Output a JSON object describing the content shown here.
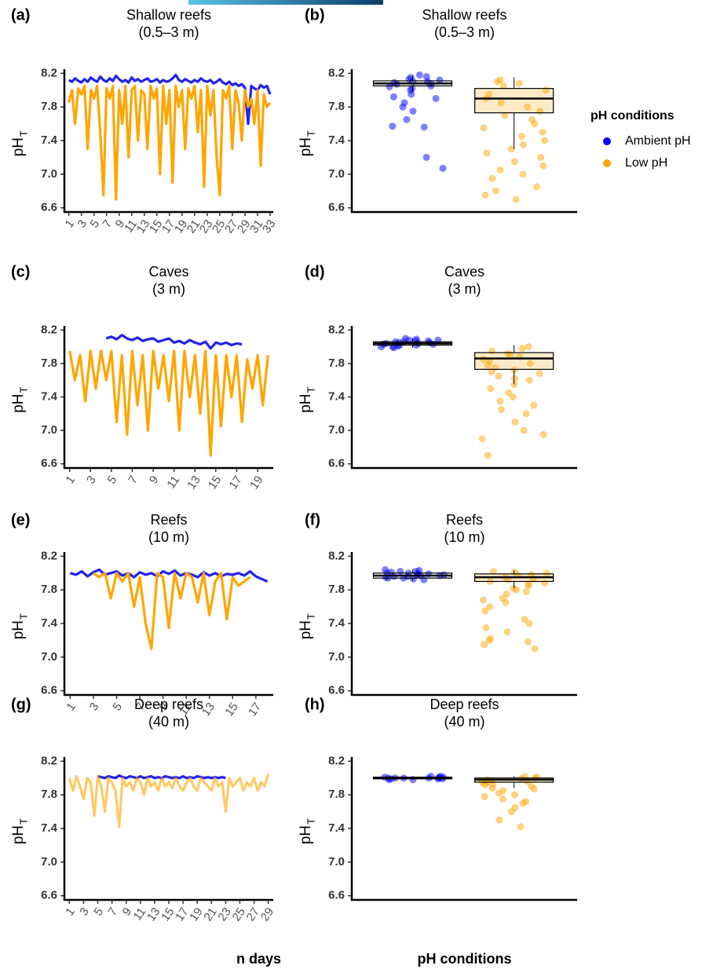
{
  "chart_data": [
    {
      "type": "line",
      "panel": "(a)",
      "title": "Shallow reefs",
      "subtitle": "(0.5–3 m)",
      "y_label": "pH",
      "y_label_sub": "T",
      "ylim": [
        6.55,
        8.25
      ],
      "yticks": [
        6.6,
        {
          "value": 7,
          "label": "7.0"
        },
        7.4,
        7.8,
        8.2
      ],
      "xlim": [
        0.3,
        33.5
      ],
      "xticks": [
        1,
        3,
        5,
        7,
        9,
        11,
        13,
        15,
        17,
        19,
        21,
        23,
        25,
        27,
        29,
        31,
        33
      ],
      "x": [
        1,
        1.5,
        2,
        2.5,
        3,
        3.5,
        4,
        4.5,
        5,
        5.5,
        6,
        6.5,
        7,
        7.5,
        8,
        8.5,
        9,
        9.5,
        10,
        10.5,
        11,
        11.5,
        12,
        12.5,
        13,
        13.5,
        14,
        14.5,
        15,
        15.5,
        16,
        16.5,
        17,
        17.5,
        18,
        18.5,
        19,
        19.5,
        20,
        20.5,
        21,
        21.5,
        22,
        22.5,
        23,
        23.5,
        24,
        24.5,
        25,
        25.5,
        26,
        26.5,
        27,
        27.5,
        28,
        28.5,
        29,
        29.5,
        30,
        30.5,
        31,
        31.5,
        32,
        32.5,
        33
      ],
      "series": [
        {
          "color": "#2222ee",
          "values": [
            8.12,
            8.1,
            8.14,
            8.11,
            8.09,
            8.13,
            8.1,
            8.15,
            8.12,
            8.1,
            8.16,
            8.12,
            8.1,
            8.14,
            8.11,
            8.17,
            8.13,
            8.1,
            8.12,
            8.09,
            8.15,
            8.11,
            8.13,
            8.1,
            8.12,
            8.14,
            8.1,
            8.11,
            8.13,
            8.09,
            8.12,
            8.1,
            8.11,
            8.14,
            8.18,
            8.12,
            8.1,
            8.13,
            8.11,
            8.09,
            8.12,
            8.1,
            8.14,
            8.11,
            8.1,
            8.12,
            8.08,
            8.1,
            8.13,
            8.09,
            8.07,
            8.1,
            8.06,
            8.08,
            8.05,
            8.07,
            8.03,
            7.6,
            8.05,
            8.02,
            8.0,
            8.06,
            8.03,
            8.05,
            7.95
          ]
        },
        {
          "color": "#ffa500",
          "values": [
            7.85,
            8.0,
            7.6,
            8.02,
            7.95,
            8.05,
            7.3,
            8.0,
            7.9,
            8.05,
            7.5,
            6.75,
            8.02,
            7.9,
            8.05,
            6.7,
            8.0,
            7.6,
            8.05,
            7.2,
            8.0,
            8.05,
            7.4,
            8.0,
            7.95,
            7.3,
            8.05,
            7.9,
            8.02,
            7.0,
            8.05,
            7.6,
            8.0,
            6.9,
            8.05,
            7.8,
            8.0,
            7.3,
            8.02,
            7.9,
            8.05,
            7.5,
            8.0,
            6.85,
            8.05,
            7.7,
            8.0,
            7.2,
            6.75,
            8.0,
            7.9,
            8.05,
            7.3,
            8.0,
            7.85,
            7.4,
            8.0,
            7.8,
            7.9,
            7.6,
            8.0,
            7.1,
            7.95,
            7.8,
            7.85
          ]
        }
      ]
    },
    {
      "type": "box",
      "panel": "(b)",
      "title": "Shallow reefs",
      "subtitle": "(0.5–3 m)",
      "y_label": "pH",
      "y_label_sub": "T",
      "ylim": [
        6.55,
        8.25
      ],
      "yticks": [
        6.6,
        {
          "value": 7,
          "label": "7.0"
        },
        7.4,
        7.8,
        8.2
      ],
      "series": [
        {
          "color": "#0000ff",
          "box_fill": "#ffffff",
          "whisker_low": 7.98,
          "q1": 8.05,
          "median": 8.08,
          "q3": 8.11,
          "whisker_high": 8.17,
          "values": [
            8.1,
            8.15,
            8.05,
            8.12,
            8.08,
            8.0,
            7.95,
            8.18,
            8.02,
            7.9,
            7.85,
            8.07,
            8.13,
            7.75,
            7.57,
            7.56,
            7.65,
            7.2,
            7.07,
            8.1,
            8.09,
            8.16,
            7.92,
            8.04,
            7.8
          ]
        },
        {
          "color": "#ffa500",
          "box_fill": "#fdebc8",
          "whisker_low": 7.3,
          "q1": 7.73,
          "median": 7.9,
          "q3": 8.02,
          "whisker_high": 8.15,
          "values": [
            8.1,
            8.05,
            7.95,
            7.8,
            7.9,
            8.12,
            7.7,
            7.6,
            7.5,
            7.45,
            7.4,
            7.3,
            7.2,
            7.1,
            7.05,
            7.0,
            6.95,
            6.85,
            6.8,
            6.75,
            6.7,
            7.25,
            7.55,
            7.65,
            7.35,
            7.15,
            8.0,
            7.85,
            7.75,
            8.08
          ]
        }
      ]
    },
    {
      "type": "line",
      "panel": "(c)",
      "title": "Caves",
      "subtitle": "(3 m)",
      "y_label": "pH",
      "y_label_sub": "T",
      "ylim": [
        6.55,
        8.25
      ],
      "yticks": [
        6.6,
        {
          "value": 7,
          "label": "7.0"
        },
        7.4,
        7.8,
        8.2
      ],
      "xlim": [
        0.5,
        20.5
      ],
      "xticks": [
        1,
        3,
        5,
        7,
        9,
        11,
        13,
        15,
        17,
        19
      ],
      "x": [
        1,
        1.5,
        2,
        2.5,
        3,
        3.5,
        4,
        4.5,
        5,
        5.5,
        6,
        6.5,
        7,
        7.5,
        8,
        8.5,
        9,
        9.5,
        10,
        10.5,
        11,
        11.5,
        12,
        12.5,
        13,
        13.5,
        14,
        14.5,
        15,
        15.5,
        16,
        16.5,
        17,
        17.5,
        18,
        18.5,
        19,
        19.5,
        20
      ],
      "series": [
        {
          "color": "#2222ee",
          "values": [
            null,
            null,
            null,
            null,
            null,
            null,
            null,
            8.1,
            8.12,
            8.09,
            8.14,
            8.1,
            8.08,
            8.11,
            8.07,
            8.09,
            8.1,
            8.06,
            8.08,
            8.1,
            8.05,
            8.07,
            8.04,
            8.08,
            8.05,
            8.03,
            8.06,
            7.98,
            8.05,
            8.03,
            8.05,
            8.02,
            8.04,
            8.03,
            null,
            null,
            null,
            null,
            null
          ]
        },
        {
          "color": "#ffa500",
          "values": [
            7.95,
            7.6,
            7.9,
            7.35,
            7.95,
            7.5,
            7.95,
            7.6,
            7.95,
            7.1,
            7.9,
            6.95,
            7.95,
            7.3,
            7.9,
            7.0,
            7.95,
            7.5,
            7.9,
            7.35,
            7.95,
            7.0,
            7.95,
            7.4,
            7.9,
            7.2,
            7.95,
            6.7,
            7.9,
            7.05,
            7.9,
            7.4,
            7.9,
            7.1,
            7.85,
            7.5,
            7.9,
            7.3,
            7.9
          ]
        }
      ]
    },
    {
      "type": "box",
      "panel": "(d)",
      "title": "Caves",
      "subtitle": "(3 m)",
      "y_label": "pH",
      "y_label_sub": "T",
      "ylim": [
        6.55,
        8.25
      ],
      "yticks": [
        6.6,
        {
          "value": 7,
          "label": "7.0"
        },
        7.4,
        7.8,
        8.2
      ],
      "series": [
        {
          "color": "#0000ff",
          "box_fill": "#ffffff",
          "whisker_low": 7.99,
          "q1": 8.02,
          "median": 8.04,
          "q3": 8.06,
          "whisker_high": 8.1,
          "values": [
            8.0,
            8.02,
            8.04,
            8.06,
            8.08,
            8.1,
            8.01,
            8.03,
            8.05,
            8.07,
            8.09,
            7.99,
            8.0,
            8.06,
            8.04,
            8.02,
            8.08,
            8.03,
            8.05,
            8.07
          ]
        },
        {
          "color": "#ffa500",
          "box_fill": "#fdebc8",
          "whisker_low": 7.55,
          "q1": 7.73,
          "median": 7.86,
          "q3": 7.93,
          "whisker_high": 8.02,
          "values": [
            8.0,
            7.95,
            7.9,
            7.85,
            7.8,
            7.75,
            7.7,
            7.65,
            7.6,
            7.55,
            7.5,
            7.45,
            7.4,
            7.3,
            7.2,
            7.1,
            7.0,
            6.95,
            6.9,
            6.7,
            7.98,
            7.92,
            7.88,
            7.82,
            7.78,
            7.72,
            7.68,
            7.62,
            7.35,
            7.25
          ]
        }
      ]
    },
    {
      "type": "line",
      "panel": "(e)",
      "title": "Reefs",
      "subtitle": "(10 m)",
      "y_label": "pH",
      "y_label_sub": "T",
      "ylim": [
        6.55,
        8.25
      ],
      "yticks": [
        6.6,
        {
          "value": 7,
          "label": "7.0"
        },
        7.4,
        7.8,
        8.2
      ],
      "xlim": [
        0.5,
        18.5
      ],
      "xticks": [
        1,
        3,
        5,
        7,
        9,
        11,
        13,
        15,
        17
      ],
      "x": [
        1,
        1.5,
        2,
        2.5,
        3,
        3.5,
        4,
        4.5,
        5,
        5.5,
        6,
        6.5,
        7,
        7.5,
        8,
        8.5,
        9,
        9.5,
        10,
        10.5,
        11,
        11.5,
        12,
        12.5,
        13,
        13.5,
        14,
        14.5,
        15,
        15.5,
        16,
        16.5,
        17,
        17.5,
        18
      ],
      "series": [
        {
          "color": "#2222ee",
          "values": [
            8.0,
            7.98,
            8.02,
            7.96,
            8.01,
            8.04,
            7.98,
            8.0,
            8.02,
            7.97,
            8.0,
            7.95,
            8.01,
            7.98,
            8.0,
            7.96,
            8.02,
            7.99,
            8.03,
            7.97,
            8.0,
            7.98,
            7.95,
            8.01,
            7.97,
            8.0,
            7.96,
            7.99,
            7.98,
            8.0,
            7.97,
            8.02,
            7.96,
            7.93,
            7.9
          ]
        },
        {
          "color": "#ffa500",
          "values": [
            null,
            null,
            null,
            null,
            8.0,
            7.95,
            8.0,
            7.7,
            8.0,
            7.9,
            8.0,
            7.6,
            7.95,
            7.4,
            7.1,
            8.0,
            7.95,
            7.35,
            8.0,
            7.7,
            8.0,
            7.95,
            7.65,
            8.0,
            7.5,
            7.9,
            8.0,
            7.45,
            7.95,
            7.85,
            7.9,
            7.95,
            null,
            null,
            null
          ]
        }
      ]
    },
    {
      "type": "box",
      "panel": "(f)",
      "title": "Reefs",
      "subtitle": "(10 m)",
      "y_label": "pH",
      "y_label_sub": "T",
      "ylim": [
        6.55,
        8.25
      ],
      "yticks": [
        6.6,
        {
          "value": 7,
          "label": "7.0"
        },
        7.4,
        7.8,
        8.2
      ],
      "series": [
        {
          "color": "#0000ff",
          "box_fill": "#ffffff",
          "whisker_low": 7.91,
          "q1": 7.94,
          "median": 7.97,
          "q3": 8.0,
          "whisker_high": 8.04,
          "values": [
            7.92,
            7.94,
            7.96,
            7.98,
            8.0,
            8.02,
            8.04,
            7.93,
            7.95,
            7.97,
            7.99,
            8.01,
            8.03,
            7.96,
            7.98,
            8.0,
            7.94,
            7.97,
            8.02,
            7.99
          ]
        },
        {
          "color": "#ffa500",
          "box_fill": "#fdebc8",
          "whisker_low": 7.82,
          "q1": 7.9,
          "median": 7.95,
          "q3": 7.99,
          "whisker_high": 8.03,
          "values": [
            8.02,
            8.0,
            7.98,
            7.95,
            7.92,
            7.9,
            7.88,
            7.85,
            7.8,
            7.75,
            7.7,
            7.65,
            7.55,
            7.45,
            7.35,
            7.3,
            7.2,
            7.15,
            7.1,
            7.22,
            7.18,
            7.4,
            7.6,
            7.82,
            7.97,
            8.01,
            7.93,
            7.87,
            7.78,
            7.68
          ]
        }
      ]
    },
    {
      "type": "line",
      "panel": "(g)",
      "title": "Deep reefs",
      "subtitle": "(40 m)",
      "y_label": "pH",
      "y_label_sub": "T",
      "x_label": "n days",
      "ylim": [
        6.55,
        8.25
      ],
      "yticks": [
        6.6,
        {
          "value": 7,
          "label": "7.0"
        },
        7.4,
        7.8,
        8.2
      ],
      "xlim": [
        0.3,
        29.7
      ],
      "xticks": [
        1,
        3,
        5,
        7,
        9,
        11,
        13,
        15,
        17,
        19,
        21,
        23,
        25,
        27,
        29
      ],
      "x": [
        1,
        1.5,
        2,
        2.5,
        3,
        3.5,
        4,
        4.5,
        5,
        5.5,
        6,
        6.5,
        7,
        7.5,
        8,
        8.5,
        9,
        9.5,
        10,
        10.5,
        11,
        11.5,
        12,
        12.5,
        13,
        13.5,
        14,
        14.5,
        15,
        15.5,
        16,
        16.5,
        17,
        17.5,
        18,
        18.5,
        19,
        19.5,
        20,
        20.5,
        21,
        21.5,
        22,
        22.5,
        23,
        23.5,
        24,
        24.5,
        25,
        25.5,
        26,
        26.5,
        27,
        27.5,
        28,
        28.5,
        29
      ],
      "series": [
        {
          "color": "#2222ee",
          "values": [
            null,
            null,
            null,
            null,
            null,
            null,
            null,
            null,
            8.02,
            8.01,
            8.0,
            8.02,
            8.01,
            8.0,
            8.03,
            8.01,
            8.0,
            8.02,
            8.01,
            8.0,
            8.02,
            8.0,
            8.01,
            8.02,
            8.0,
            8.01,
            8.0,
            8.02,
            8.01,
            8.0,
            8.01,
            8.0,
            8.02,
            8.0,
            8.01,
            8.0,
            8.02,
            8.01,
            8.0,
            8.01,
            8.0,
            8.01,
            8.0,
            8.01,
            8.0,
            null,
            null,
            null,
            null,
            null,
            null,
            null,
            null,
            null,
            null,
            null,
            null
          ]
        },
        {
          "color": "#ffa500",
          "opacity": 0.6,
          "values": [
            8.0,
            7.85,
            8.02,
            7.9,
            7.75,
            8.0,
            7.95,
            7.55,
            8.02,
            7.9,
            7.6,
            8.0,
            7.95,
            7.85,
            7.42,
            8.0,
            7.9,
            7.95,
            7.85,
            8.0,
            7.95,
            7.8,
            8.0,
            7.9,
            7.95,
            7.85,
            8.0,
            7.9,
            7.95,
            7.88,
            8.0,
            7.9,
            7.85,
            7.95,
            8.0,
            7.9,
            7.85,
            8.0,
            7.95,
            7.9,
            7.85,
            8.0,
            7.9,
            7.95,
            7.6,
            8.0,
            7.9,
            7.95,
            8.0,
            7.85,
            7.95,
            7.9,
            8.0,
            7.85,
            7.95,
            7.9,
            8.05
          ]
        }
      ]
    },
    {
      "type": "box",
      "panel": "(h)",
      "title": "Deep reefs",
      "subtitle": "(40 m)",
      "y_label": "pH",
      "y_label_sub": "T",
      "x_label": "pH conditions",
      "ylim": [
        6.55,
        8.25
      ],
      "yticks": [
        6.6,
        {
          "value": 7,
          "label": "7.0"
        },
        7.4,
        7.8,
        8.2
      ],
      "series": [
        {
          "color": "#0000ff",
          "box_fill": "#ffffff",
          "whisker_low": 7.98,
          "q1": 7.99,
          "median": 8.0,
          "q3": 8.01,
          "whisker_high": 8.02,
          "values": [
            7.98,
            7.99,
            8.0,
            8.01,
            8.02,
            8.0,
            7.99,
            8.01,
            8.0,
            7.98,
            8.02,
            8.0,
            7.99,
            8.01,
            8.0
          ]
        },
        {
          "color": "#ffa500",
          "box_fill": "#fdebc8",
          "whisker_low": 7.88,
          "q1": 7.95,
          "median": 7.98,
          "q3": 8.0,
          "whisker_high": 8.02,
          "values": [
            8.02,
            8.0,
            7.98,
            7.96,
            7.94,
            7.92,
            7.9,
            7.88,
            7.85,
            7.82,
            7.8,
            7.75,
            7.7,
            7.65,
            7.6,
            7.5,
            7.42,
            7.97,
            7.99,
            7.93,
            7.87,
            7.78,
            7.72,
            8.01,
            7.95
          ]
        }
      ]
    }
  ],
  "legend": {
    "title": "pH conditions",
    "entries": [
      {
        "name": "Ambient pH",
        "color": "#0000ff"
      },
      {
        "name": "Low pH",
        "color": "#ffa500"
      }
    ]
  }
}
